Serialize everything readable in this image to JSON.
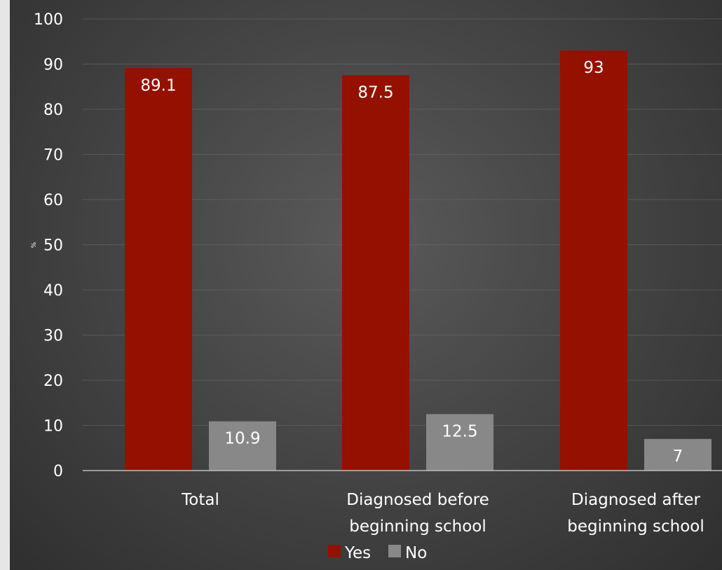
{
  "chart_data": {
    "type": "bar",
    "categories": [
      [
        "Total"
      ],
      [
        "Diagnosed before",
        "beginning school"
      ],
      [
        "Diagnosed after",
        "beginning school"
      ]
    ],
    "series": [
      {
        "name": "Yes",
        "values": [
          89.1,
          87.5,
          93
        ],
        "color": "#941100"
      },
      {
        "name": "No",
        "values": [
          10.9,
          12.5,
          7
        ],
        "color": "#888888"
      }
    ],
    "data_labels": [
      [
        "89.1",
        "87.5",
        "93"
      ],
      [
        "10.9",
        "12.5",
        "7"
      ]
    ],
    "ylabel": "%",
    "ylim": [
      0,
      100
    ],
    "yticks": [
      0,
      10,
      20,
      30,
      40,
      50,
      60,
      70,
      80,
      90,
      100
    ],
    "grid": true,
    "legend": "bottom-center"
  }
}
